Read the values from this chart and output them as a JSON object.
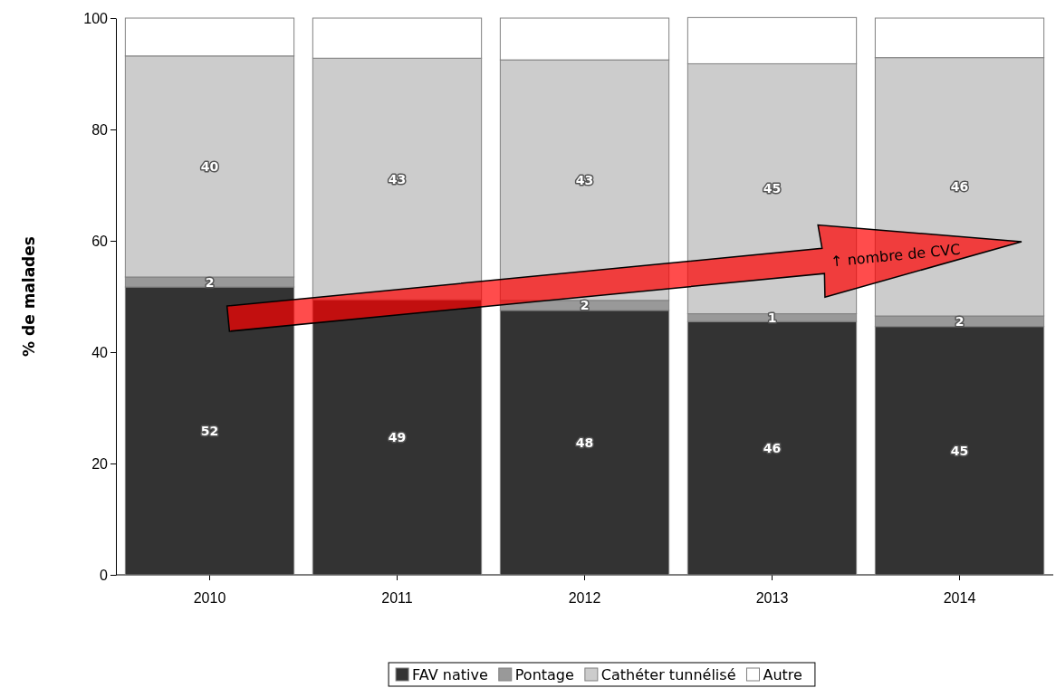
{
  "chart_data": {
    "type": "bar",
    "stacked": true,
    "ylabel": "% de malades",
    "categories": [
      "2010",
      "2011",
      "2012",
      "2013",
      "2014"
    ],
    "ylim": [
      0,
      100
    ],
    "yticks": [
      0,
      20,
      40,
      60,
      80,
      100
    ],
    "grid": false,
    "legend": "bottom",
    "series": [
      {
        "name": "FAV native",
        "color": "#333333",
        "values": [
          51.7,
          49.4,
          47.5,
          45.5,
          44.6
        ],
        "value_labels": [
          "52",
          "49",
          "48",
          "46",
          "45"
        ]
      },
      {
        "name": "Pontage",
        "color": "#999999",
        "values": [
          1.8,
          null,
          1.8,
          1.4,
          1.9
        ],
        "value_labels": [
          "2",
          null,
          "2",
          "1",
          "2"
        ]
      },
      {
        "name": "Cathéter tunnélisé",
        "color": "#cccccc",
        "values": [
          39.7,
          43.4,
          43.2,
          44.9,
          46.4
        ],
        "value_labels": [
          "40",
          "43",
          "43",
          "45",
          "46"
        ]
      },
      {
        "name": "Autre",
        "color": "#ffffff",
        "values": [
          6.8,
          7.2,
          7.5,
          8.3,
          7.1
        ],
        "value_labels": [
          null,
          null,
          null,
          null,
          null
        ]
      }
    ],
    "annotations": [
      "↑ nombre de CVC"
    ]
  }
}
